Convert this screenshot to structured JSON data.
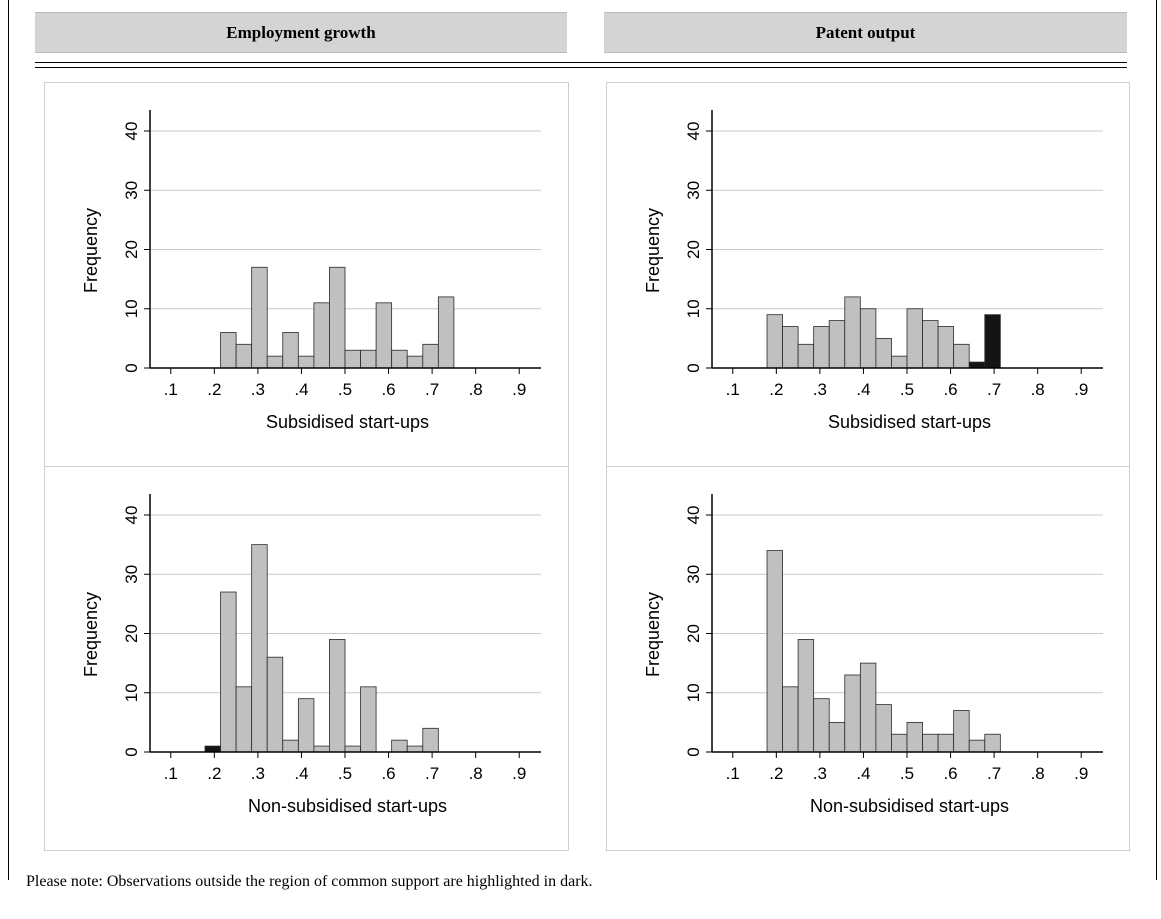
{
  "headers": {
    "left": "Employment growth",
    "right": "Patent output"
  },
  "footnote": "Please note: Observations outside the region of common support are highlighted in dark.",
  "colors": {
    "inside_support": "#c0c0c0",
    "outside_support": "#141414",
    "gridline": "#c8c8c8",
    "header_bg": "#d4d4d4"
  },
  "chart_data": [
    {
      "type": "bar",
      "panel": "employment-subsidised",
      "xlabel": "Subsidised start-ups",
      "ylabel": "Frequency",
      "xlim": [
        0.05,
        0.95
      ],
      "ylim": [
        0,
        40
      ],
      "xticks": [
        ".1",
        ".2",
        ".3",
        ".4",
        ".5",
        ".6",
        ".7",
        ".8",
        ".9"
      ],
      "yticks": [
        "0",
        "10",
        "20",
        "30",
        "40"
      ],
      "grid": true,
      "bin_width": 0.0357,
      "bins": [
        {
          "x": 0.2143,
          "value": 6,
          "outside": false
        },
        {
          "x": 0.25,
          "value": 4,
          "outside": false
        },
        {
          "x": 0.2857,
          "value": 17,
          "outside": false
        },
        {
          "x": 0.3214,
          "value": 2,
          "outside": false
        },
        {
          "x": 0.3571,
          "value": 6,
          "outside": false
        },
        {
          "x": 0.3929,
          "value": 2,
          "outside": false
        },
        {
          "x": 0.4286,
          "value": 11,
          "outside": false
        },
        {
          "x": 0.4643,
          "value": 17,
          "outside": false
        },
        {
          "x": 0.5,
          "value": 3,
          "outside": false
        },
        {
          "x": 0.5357,
          "value": 3,
          "outside": false
        },
        {
          "x": 0.5714,
          "value": 11,
          "outside": false
        },
        {
          "x": 0.6071,
          "value": 3,
          "outside": false
        },
        {
          "x": 0.6429,
          "value": 2,
          "outside": false
        },
        {
          "x": 0.6786,
          "value": 4,
          "outside": false
        },
        {
          "x": 0.7143,
          "value": 12,
          "outside": false
        }
      ]
    },
    {
      "type": "bar",
      "panel": "patent-subsidised",
      "xlabel": "Subsidised start-ups",
      "ylabel": "Frequency",
      "xlim": [
        0.05,
        0.95
      ],
      "ylim": [
        0,
        40
      ],
      "xticks": [
        ".1",
        ".2",
        ".3",
        ".4",
        ".5",
        ".6",
        ".7",
        ".8",
        ".9"
      ],
      "yticks": [
        "0",
        "10",
        "20",
        "30",
        "40"
      ],
      "grid": true,
      "bin_width": 0.0357,
      "bins": [
        {
          "x": 0.1786,
          "value": 9,
          "outside": false
        },
        {
          "x": 0.2143,
          "value": 7,
          "outside": false
        },
        {
          "x": 0.25,
          "value": 4,
          "outside": false
        },
        {
          "x": 0.2857,
          "value": 7,
          "outside": false
        },
        {
          "x": 0.3214,
          "value": 8,
          "outside": false
        },
        {
          "x": 0.3571,
          "value": 12,
          "outside": false
        },
        {
          "x": 0.3929,
          "value": 10,
          "outside": false
        },
        {
          "x": 0.4286,
          "value": 5,
          "outside": false
        },
        {
          "x": 0.4643,
          "value": 2,
          "outside": false
        },
        {
          "x": 0.5,
          "value": 10,
          "outside": false
        },
        {
          "x": 0.5357,
          "value": 8,
          "outside": false
        },
        {
          "x": 0.5714,
          "value": 7,
          "outside": false
        },
        {
          "x": 0.6071,
          "value": 4,
          "outside": false
        },
        {
          "x": 0.6429,
          "value": 1,
          "outside": true
        },
        {
          "x": 0.6786,
          "value": 9,
          "outside": true
        }
      ]
    },
    {
      "type": "bar",
      "panel": "employment-nonsubsidised",
      "xlabel": "Non-subsidised start-ups",
      "ylabel": "Frequency",
      "xlim": [
        0.05,
        0.95
      ],
      "ylim": [
        0,
        40
      ],
      "xticks": [
        ".1",
        ".2",
        ".3",
        ".4",
        ".5",
        ".6",
        ".7",
        ".8",
        ".9"
      ],
      "yticks": [
        "0",
        "10",
        "20",
        "30",
        "40"
      ],
      "grid": true,
      "bin_width": 0.0357,
      "bins": [
        {
          "x": 0.1786,
          "value": 1,
          "outside": true
        },
        {
          "x": 0.2143,
          "value": 27,
          "outside": false
        },
        {
          "x": 0.25,
          "value": 11,
          "outside": false
        },
        {
          "x": 0.2857,
          "value": 35,
          "outside": false
        },
        {
          "x": 0.3214,
          "value": 16,
          "outside": false
        },
        {
          "x": 0.3571,
          "value": 2,
          "outside": false
        },
        {
          "x": 0.3929,
          "value": 9,
          "outside": false
        },
        {
          "x": 0.4286,
          "value": 1,
          "outside": false
        },
        {
          "x": 0.4643,
          "value": 19,
          "outside": false
        },
        {
          "x": 0.5,
          "value": 1,
          "outside": false
        },
        {
          "x": 0.5357,
          "value": 11,
          "outside": false
        },
        {
          "x": 0.5714,
          "value": 0,
          "outside": false
        },
        {
          "x": 0.6071,
          "value": 2,
          "outside": false
        },
        {
          "x": 0.6429,
          "value": 1,
          "outside": false
        },
        {
          "x": 0.6786,
          "value": 4,
          "outside": false
        }
      ]
    },
    {
      "type": "bar",
      "panel": "patent-nonsubsidised",
      "xlabel": "Non-subsidised start-ups",
      "ylabel": "Frequency",
      "xlim": [
        0.05,
        0.95
      ],
      "ylim": [
        0,
        40
      ],
      "xticks": [
        ".1",
        ".2",
        ".3",
        ".4",
        ".5",
        ".6",
        ".7",
        ".8",
        ".9"
      ],
      "yticks": [
        "0",
        "10",
        "20",
        "30",
        "40"
      ],
      "grid": true,
      "bin_width": 0.0357,
      "bins": [
        {
          "x": 0.1786,
          "value": 34,
          "outside": false
        },
        {
          "x": 0.2143,
          "value": 11,
          "outside": false
        },
        {
          "x": 0.25,
          "value": 19,
          "outside": false
        },
        {
          "x": 0.2857,
          "value": 9,
          "outside": false
        },
        {
          "x": 0.3214,
          "value": 5,
          "outside": false
        },
        {
          "x": 0.3571,
          "value": 13,
          "outside": false
        },
        {
          "x": 0.3929,
          "value": 15,
          "outside": false
        },
        {
          "x": 0.4286,
          "value": 8,
          "outside": false
        },
        {
          "x": 0.4643,
          "value": 3,
          "outside": false
        },
        {
          "x": 0.5,
          "value": 5,
          "outside": false
        },
        {
          "x": 0.5357,
          "value": 3,
          "outside": false
        },
        {
          "x": 0.5714,
          "value": 3,
          "outside": false
        },
        {
          "x": 0.6071,
          "value": 7,
          "outside": false
        },
        {
          "x": 0.6429,
          "value": 2,
          "outside": false
        },
        {
          "x": 0.6786,
          "value": 3,
          "outside": false
        }
      ]
    }
  ]
}
